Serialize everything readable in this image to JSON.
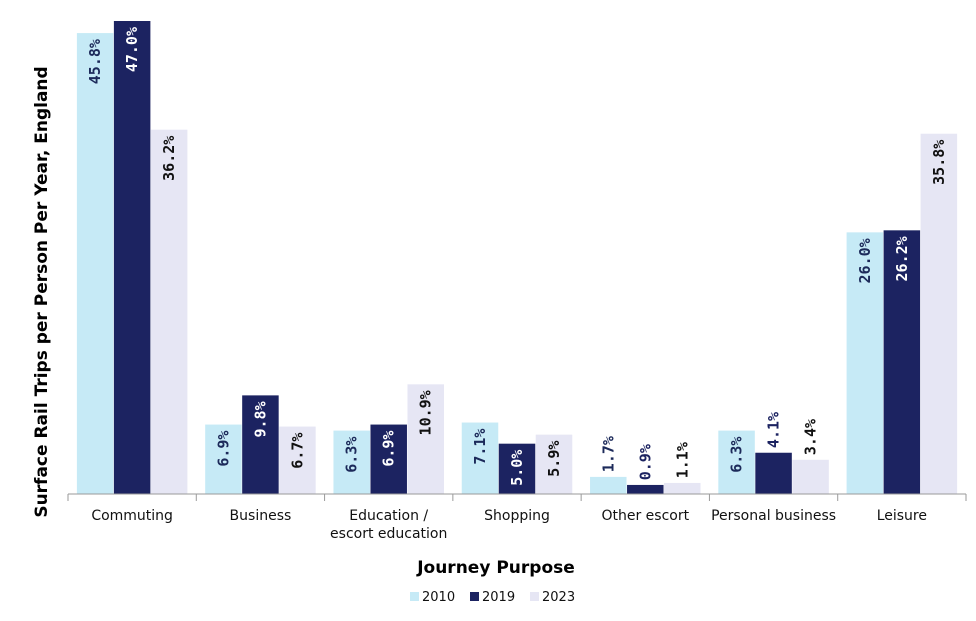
{
  "chart_data": {
    "type": "bar",
    "title": "",
    "xlabel": "Journey Purpose",
    "ylabel": "Surface Rail Trips per Person Per Year, England",
    "ylim": [
      0,
      47
    ],
    "grid": false,
    "legend_position": "bottom-center",
    "categories": [
      [
        "Commuting"
      ],
      [
        "Business"
      ],
      [
        "Education /",
        "escort education"
      ],
      [
        "Shopping"
      ],
      [
        "Other escort"
      ],
      [
        "Personal business"
      ],
      [
        "Leisure"
      ]
    ],
    "series": [
      {
        "name": "2010",
        "color": "#c6eaf6",
        "label_color": "#1c2a5a",
        "values": [
          45.8,
          6.9,
          6.3,
          7.1,
          1.7,
          6.3,
          26.0
        ],
        "labels": [
          "45.8%",
          "6.9%",
          "6.3%",
          "7.1%",
          "1.7%",
          "6.3%",
          "26.0%"
        ]
      },
      {
        "name": "2019",
        "color": "#1c2361",
        "label_color": "#ffffff",
        "values": [
          47.0,
          9.8,
          6.9,
          5.0,
          0.9,
          4.1,
          26.2
        ],
        "labels": [
          "47.0%",
          "9.8%",
          "6.9%",
          "5.0%",
          "0.9%",
          "4.1%",
          "26.2%"
        ]
      },
      {
        "name": "2023",
        "color": "#e6e6f4",
        "label_color": "#111111",
        "values": [
          36.2,
          6.7,
          10.9,
          5.9,
          1.1,
          3.4,
          35.8
        ],
        "labels": [
          "36.2%",
          "6.7%",
          "10.9%",
          "5.9%",
          "1.1%",
          "3.4%",
          "35.8%"
        ]
      }
    ]
  }
}
